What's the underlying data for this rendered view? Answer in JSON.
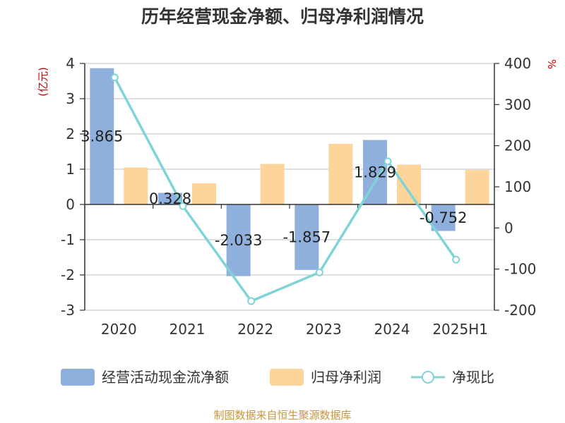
{
  "chart_data": {
    "type": "bar",
    "title": "历年经营现金净额、归母净利润情况",
    "categories": [
      "2020",
      "2021",
      "2022",
      "2023",
      "2024",
      "2025H1"
    ],
    "y_left_label": "(亿元)",
    "y_right_label": "%",
    "y_left_range": [
      -3,
      4
    ],
    "y_left_ticks": [
      4,
      3,
      2,
      1,
      0,
      -1,
      -2,
      -3
    ],
    "y_right_range": [
      -200,
      400
    ],
    "y_right_ticks": [
      400,
      300,
      200,
      100,
      0,
      -100,
      -200
    ],
    "grid": true,
    "legend_position": "bottom",
    "series": [
      {
        "name": "经营活动现金流净额",
        "type": "bar",
        "axis": "left",
        "color": "#8fb0dd",
        "values": [
          3.865,
          0.328,
          -2.033,
          -1.857,
          1.829,
          -0.752
        ],
        "labels": [
          "3.865",
          "0.328",
          "-2.033",
          "-1.857",
          "1.829",
          "-0.752"
        ]
      },
      {
        "name": "归母净利润",
        "type": "bar",
        "axis": "left",
        "color": "#fdd59a",
        "values": [
          1.05,
          0.6,
          1.15,
          1.72,
          1.13,
          0.98
        ]
      },
      {
        "name": "净现比",
        "type": "line",
        "axis": "right",
        "color": "#7fd4d8",
        "values": [
          366,
          53,
          -178,
          -108,
          162,
          -77
        ]
      }
    ],
    "source": "制图数据来自恒生聚源数据库"
  }
}
